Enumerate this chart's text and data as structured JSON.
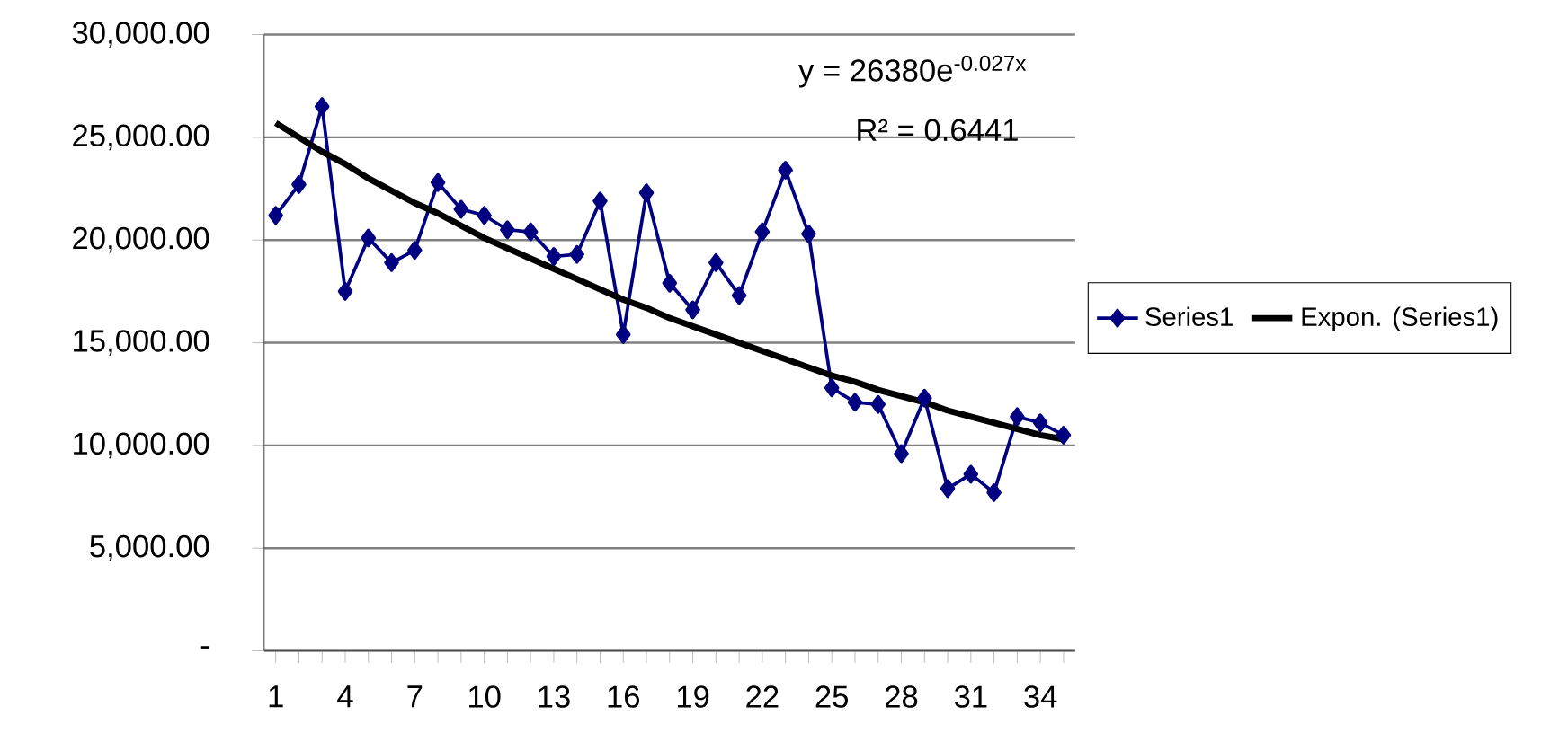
{
  "chart_data": {
    "type": "line",
    "categories": [
      "1",
      null,
      null,
      "4",
      null,
      null,
      "7",
      null,
      null,
      "10",
      null,
      null,
      "13",
      null,
      null,
      "16",
      null,
      null,
      "19",
      null,
      null,
      "22",
      null,
      null,
      "25",
      null,
      null,
      "28",
      null,
      null,
      "31",
      null,
      null,
      "34",
      null
    ],
    "series": [
      {
        "name": "Series1",
        "color": "#000080",
        "marker": "diamond",
        "line_style": "solid",
        "values": [
          21200,
          22700,
          26500,
          17500,
          20100,
          18900,
          19500,
          22800,
          21500,
          21200,
          20500,
          20400,
          19200,
          19300,
          21900,
          15400,
          22300,
          17900,
          16600,
          18900,
          17300,
          20400,
          23400,
          20300,
          12800,
          12100,
          12000,
          9600,
          12300,
          7900,
          8600,
          7700,
          11400,
          11100,
          10500
        ]
      },
      {
        "name": "Expon. (Series1)",
        "color": "#000000",
        "marker": "none",
        "line_style": "solid",
        "values": [
          25700,
          25000,
          24300,
          23700,
          23000,
          22400,
          21800,
          21300,
          20700,
          20100,
          19600,
          19100,
          18600,
          18100,
          17600,
          17100,
          16700,
          16200,
          15800,
          15400,
          15000,
          14600,
          14200,
          13800,
          13400,
          13100,
          12700,
          12400,
          12100,
          11700,
          11400,
          11100,
          10800,
          10500,
          10300
        ]
      }
    ],
    "ylim": [
      0,
      30000
    ],
    "yticks": [
      {
        "value": 0,
        "label": "-"
      },
      {
        "value": 5000,
        "label": "5,000.00"
      },
      {
        "value": 10000,
        "label": "10,000.00"
      },
      {
        "value": 15000,
        "label": "15,000.00"
      },
      {
        "value": 20000,
        "label": "20,000.00"
      },
      {
        "value": 25000,
        "label": "25,000.00"
      },
      {
        "value": 30000,
        "label": "30,000.00"
      }
    ],
    "grid": "y",
    "legend": "right",
    "annotations": [
      "y = 26380e$^{-0.027x}$",
      "R² = 0.6441"
    ]
  }
}
